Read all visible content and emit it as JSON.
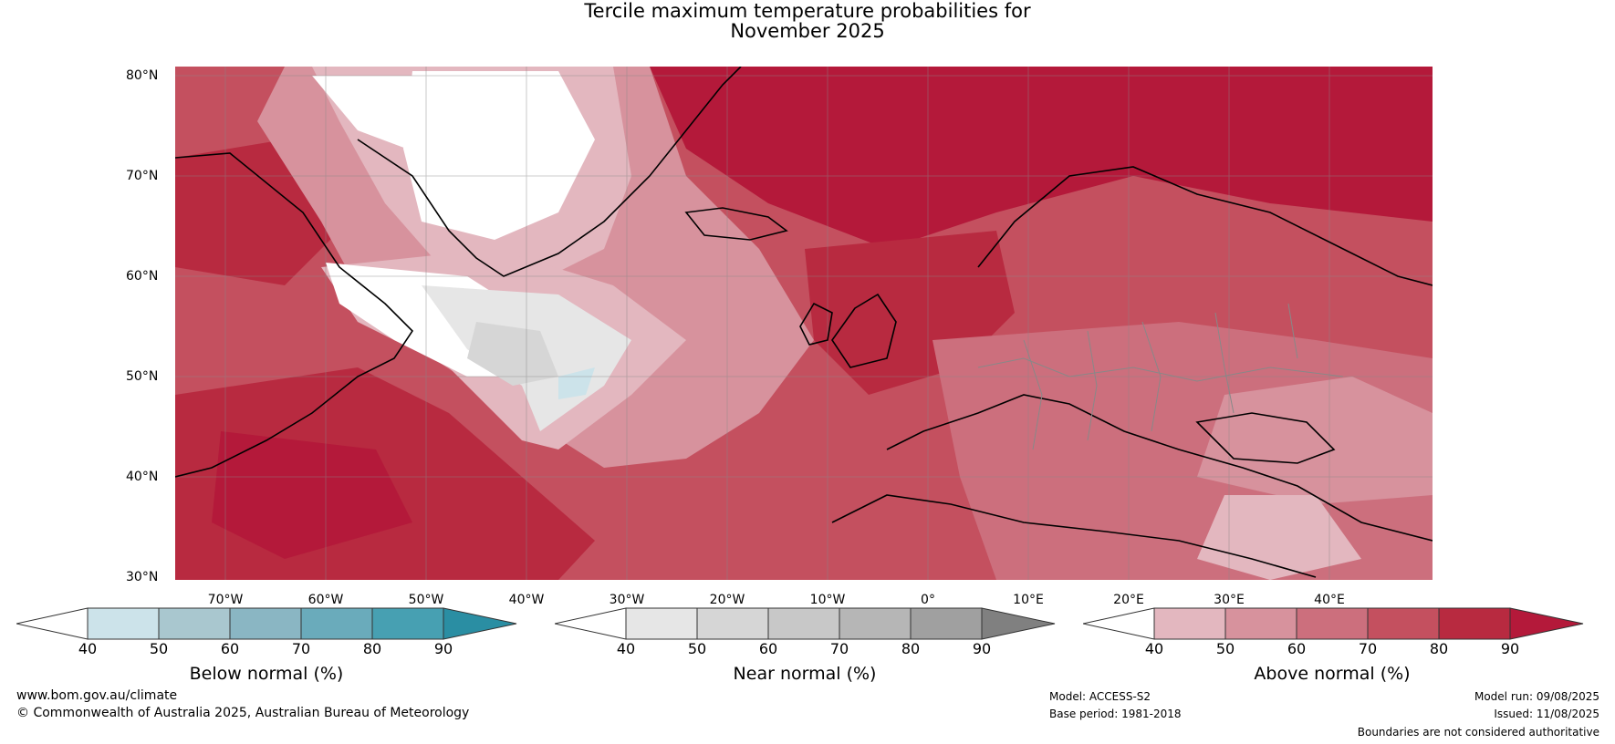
{
  "title": {
    "line1": "Tercile maximum temperature probabilities for",
    "line2": "November 2025"
  },
  "map": {
    "region": "North Atlantic and Europe",
    "latitude_labels": [
      "80°N",
      "70°N",
      "60°N",
      "50°N",
      "40°N",
      "30°N"
    ],
    "longitude_labels": [
      "70°W",
      "60°W",
      "50°W",
      "40°W",
      "30°W",
      "20°W",
      "10°W",
      "0°",
      "10°E",
      "20°E",
      "30°E",
      "40°E"
    ]
  },
  "colorbars": [
    {
      "label": "Below normal (%)",
      "ticks": [
        "40",
        "50",
        "60",
        "70",
        "80",
        "90"
      ],
      "colors": [
        "#ffffff",
        "#cce3ea",
        "#a9c7cf",
        "#8ab6c3",
        "#6aabbb",
        "#47a0b2",
        "#2a8ea3"
      ]
    },
    {
      "label": "Near normal (%)",
      "ticks": [
        "40",
        "50",
        "60",
        "70",
        "80",
        "90"
      ],
      "colors": [
        "#ffffff",
        "#e6e6e6",
        "#d6d6d6",
        "#c8c8c8",
        "#b6b6b6",
        "#a0a0a0",
        "#808080"
      ]
    },
    {
      "label": "Above normal (%)",
      "ticks": [
        "40",
        "50",
        "60",
        "70",
        "80",
        "90"
      ],
      "colors": [
        "#ffffff",
        "#e3b7bf",
        "#d7929d",
        "#cc6f7d",
        "#c4505f",
        "#b82a40",
        "#b4193a"
      ]
    }
  ],
  "footer": {
    "website": "www.bom.gov.au/climate",
    "copyright": "© Commonwealth of Australia 2025, Australian Bureau of Meteorology",
    "model": "Model: ACCESS-S2",
    "base_period": "Base period: 1981-2018",
    "model_run": "Model run: 09/08/2025",
    "issued": "Issued: 11/08/2025",
    "disclaimer": "Boundaries are not considered authoritative"
  }
}
